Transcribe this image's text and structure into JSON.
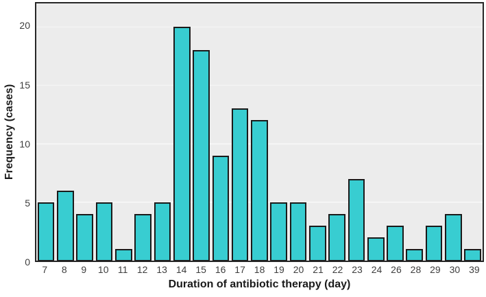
{
  "chart_data": {
    "type": "bar",
    "title": "",
    "xlabel": "Duration of antibiotic therapy (day)",
    "ylabel": "Frequency (cases)",
    "categories": [
      "7",
      "8",
      "9",
      "10",
      "11",
      "12",
      "13",
      "14",
      "15",
      "16",
      "17",
      "18",
      "19",
      "20",
      "21",
      "22",
      "23",
      "24",
      "26",
      "28",
      "29",
      "30",
      "39"
    ],
    "values": [
      5,
      6,
      4,
      5,
      1,
      4,
      5,
      20,
      18,
      9,
      13,
      12,
      5,
      5,
      3,
      4,
      7,
      2,
      3,
      1,
      3,
      4,
      1
    ],
    "y_ticks": [
      0,
      5,
      10,
      15,
      20
    ],
    "ylim": [
      0,
      22
    ],
    "grid": "horizontal",
    "legend_position": "none",
    "colors": {
      "bar_fill": "#38CDD1",
      "bar_stroke": "#1A1A1A",
      "plot_bg": "#ECECEC",
      "gridline": "#F6F6F6",
      "plot_border": "#262626",
      "tick_label": "#3D3D3D",
      "axis_title": "#1A1A1A",
      "figure_bg": "#FFFFFF"
    }
  }
}
